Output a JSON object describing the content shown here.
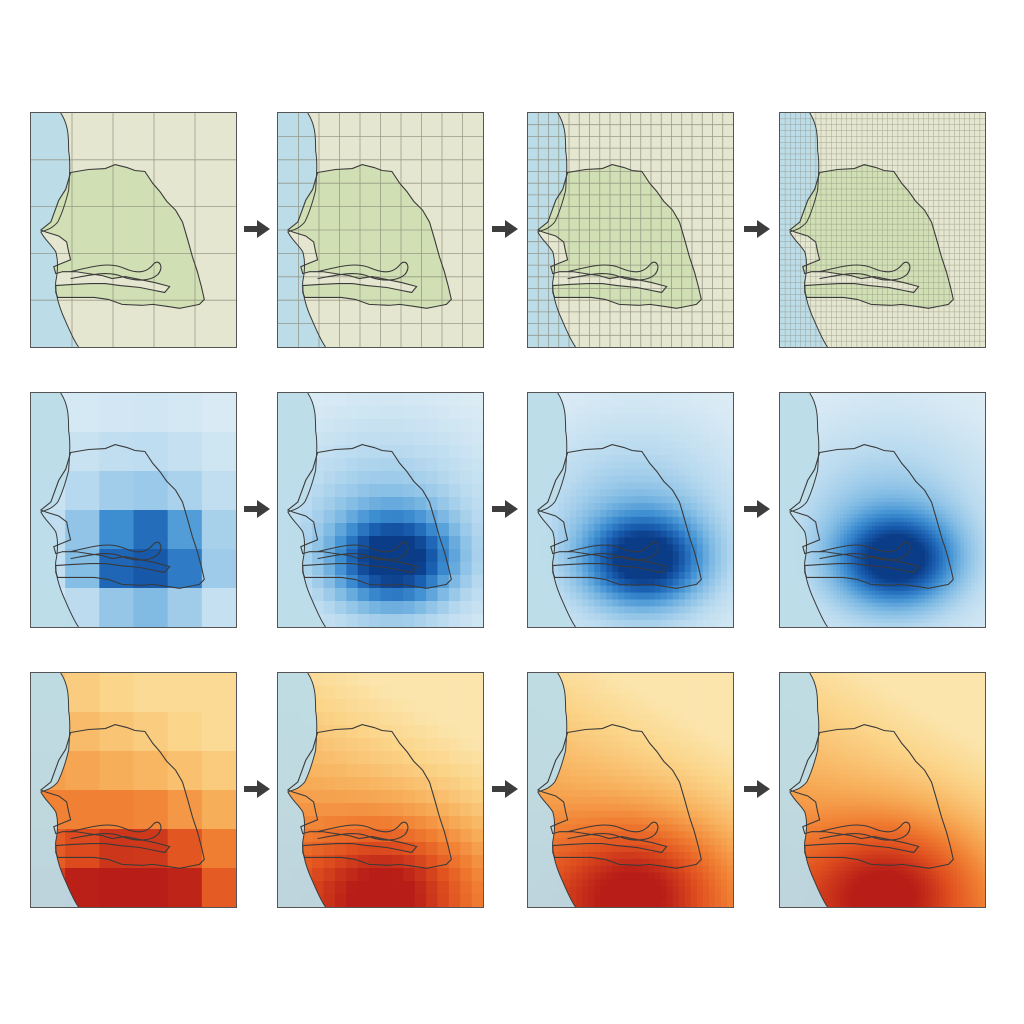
{
  "figure": {
    "columns": 4,
    "rows": [
      {
        "kind": "grid",
        "grid_divisions": [
          5,
          10,
          20,
          40
        ]
      },
      {
        "kind": "field",
        "colormap": "blues",
        "smoothness": [
          "coarse",
          "medium",
          "fine",
          "finest"
        ]
      },
      {
        "kind": "field",
        "colormap": "reds",
        "smoothness": [
          "coarse",
          "medium",
          "fine",
          "finest"
        ]
      }
    ],
    "arrow_icon": "right-arrow-icon",
    "colors": {
      "ocean": "#bcdce8",
      "land_outside": "#e4e6cf",
      "land_inside": "#d0dfb4",
      "border": "#3a3a3a",
      "arrow": "#3d3d3d",
      "blues": [
        "#e4f0f6",
        "#b9daef",
        "#7db9e3",
        "#3f8fd2",
        "#1b61b3",
        "#0b3c87"
      ],
      "reds": [
        "#fbf0c4",
        "#fbd58a",
        "#f7ad58",
        "#f07e32",
        "#e0501f",
        "#b81d17"
      ]
    }
  }
}
